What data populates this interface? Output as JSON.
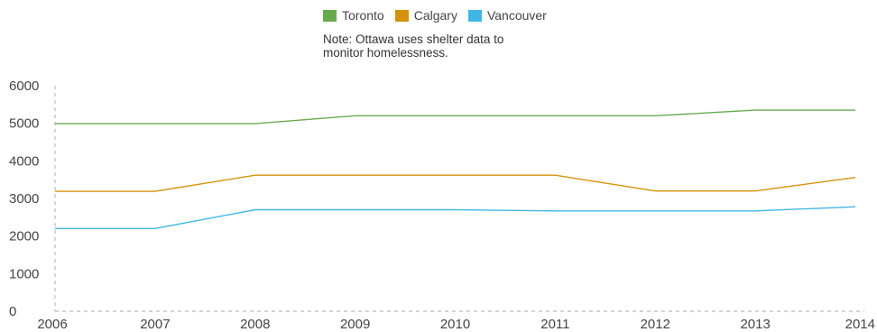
{
  "chart_data": {
    "type": "line",
    "title": "",
    "xlabel": "",
    "ylabel": "",
    "categories": [
      "2006",
      "2007",
      "2008",
      "2009",
      "2010",
      "2011",
      "2012",
      "2013",
      "2014"
    ],
    "ylim": [
      0,
      6000
    ],
    "yticks": [
      "0",
      "1000",
      "2000",
      "3000",
      "4000",
      "5000",
      "6000"
    ],
    "grid": false,
    "legend_position": "top",
    "series": [
      {
        "name": "Toronto",
        "color": "#6aaa4f",
        "values": [
          4990,
          4990,
          4990,
          5200,
          5200,
          5200,
          5200,
          5350,
          5350
        ]
      },
      {
        "name": "Calgary",
        "color": "#d4920b",
        "values": [
          3190,
          3190,
          3620,
          3620,
          3620,
          3620,
          3200,
          3200,
          3560
        ]
      },
      {
        "name": "Vancouver",
        "color": "#3fb6e3",
        "values": [
          2200,
          2200,
          2700,
          2700,
          2700,
          2670,
          2670,
          2670,
          2780
        ]
      }
    ],
    "annotations": [
      "Note: Ottawa uses shelter data to",
      "monitor homelessness."
    ]
  }
}
